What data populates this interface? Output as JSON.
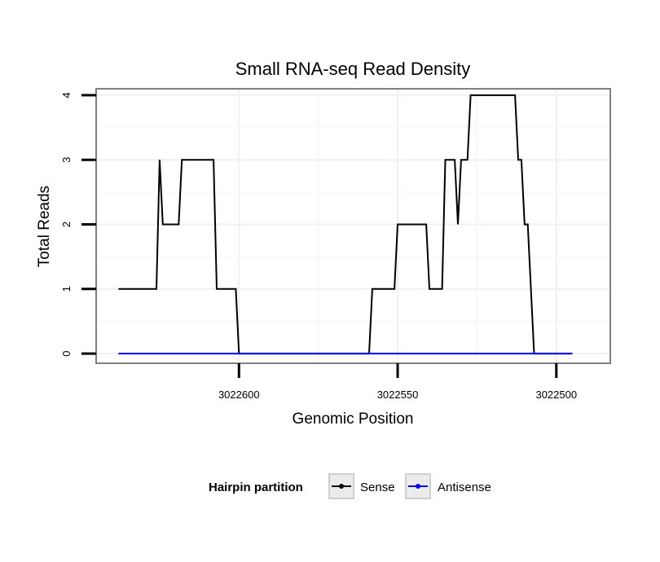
{
  "chart_data": {
    "type": "line",
    "title": "Small RNA-seq Read Density",
    "xlabel": "Genomic Position",
    "ylabel": "Total Reads",
    "x_reversed": true,
    "xlim": [
      3022645,
      3022483
    ],
    "ylim": [
      -0.15,
      4.1
    ],
    "x_ticks": [
      3022600,
      3022550,
      3022500
    ],
    "x_tick_labels": [
      "3022600",
      "3022550",
      "3022500"
    ],
    "y_ticks": [
      0,
      1,
      2,
      3,
      4
    ],
    "y_tick_labels": [
      "0",
      "1",
      "2",
      "3",
      "4"
    ],
    "grid": true,
    "legend": {
      "title": "Hairpin partition",
      "position": "bottom",
      "entries": [
        "Sense",
        "Antisense"
      ]
    },
    "series": [
      {
        "name": "Sense",
        "color": "#000000",
        "points": [
          [
            3022638,
            1
          ],
          [
            3022626,
            1
          ],
          [
            3022625,
            3
          ],
          [
            3022624,
            2
          ],
          [
            3022619,
            2
          ],
          [
            3022618,
            3
          ],
          [
            3022608,
            3
          ],
          [
            3022607,
            1
          ],
          [
            3022601,
            1
          ],
          [
            3022600,
            0
          ],
          [
            3022559,
            0
          ],
          [
            3022558,
            1
          ],
          [
            3022551,
            1
          ],
          [
            3022550,
            2
          ],
          [
            3022541,
            2
          ],
          [
            3022540,
            1
          ],
          [
            3022536,
            1
          ],
          [
            3022535,
            3
          ],
          [
            3022532,
            3
          ],
          [
            3022531,
            2
          ],
          [
            3022530,
            3
          ],
          [
            3022528,
            3
          ],
          [
            3022527,
            4
          ],
          [
            3022513,
            4
          ],
          [
            3022512,
            3
          ],
          [
            3022511,
            3
          ],
          [
            3022510,
            2
          ],
          [
            3022509,
            2
          ],
          [
            3022507,
            0
          ],
          [
            3022495,
            0
          ]
        ]
      },
      {
        "name": "Antisense",
        "color": "#0000ff",
        "points": [
          [
            3022638,
            0
          ],
          [
            3022600,
            0
          ],
          [
            3022495,
            0
          ]
        ]
      }
    ]
  }
}
